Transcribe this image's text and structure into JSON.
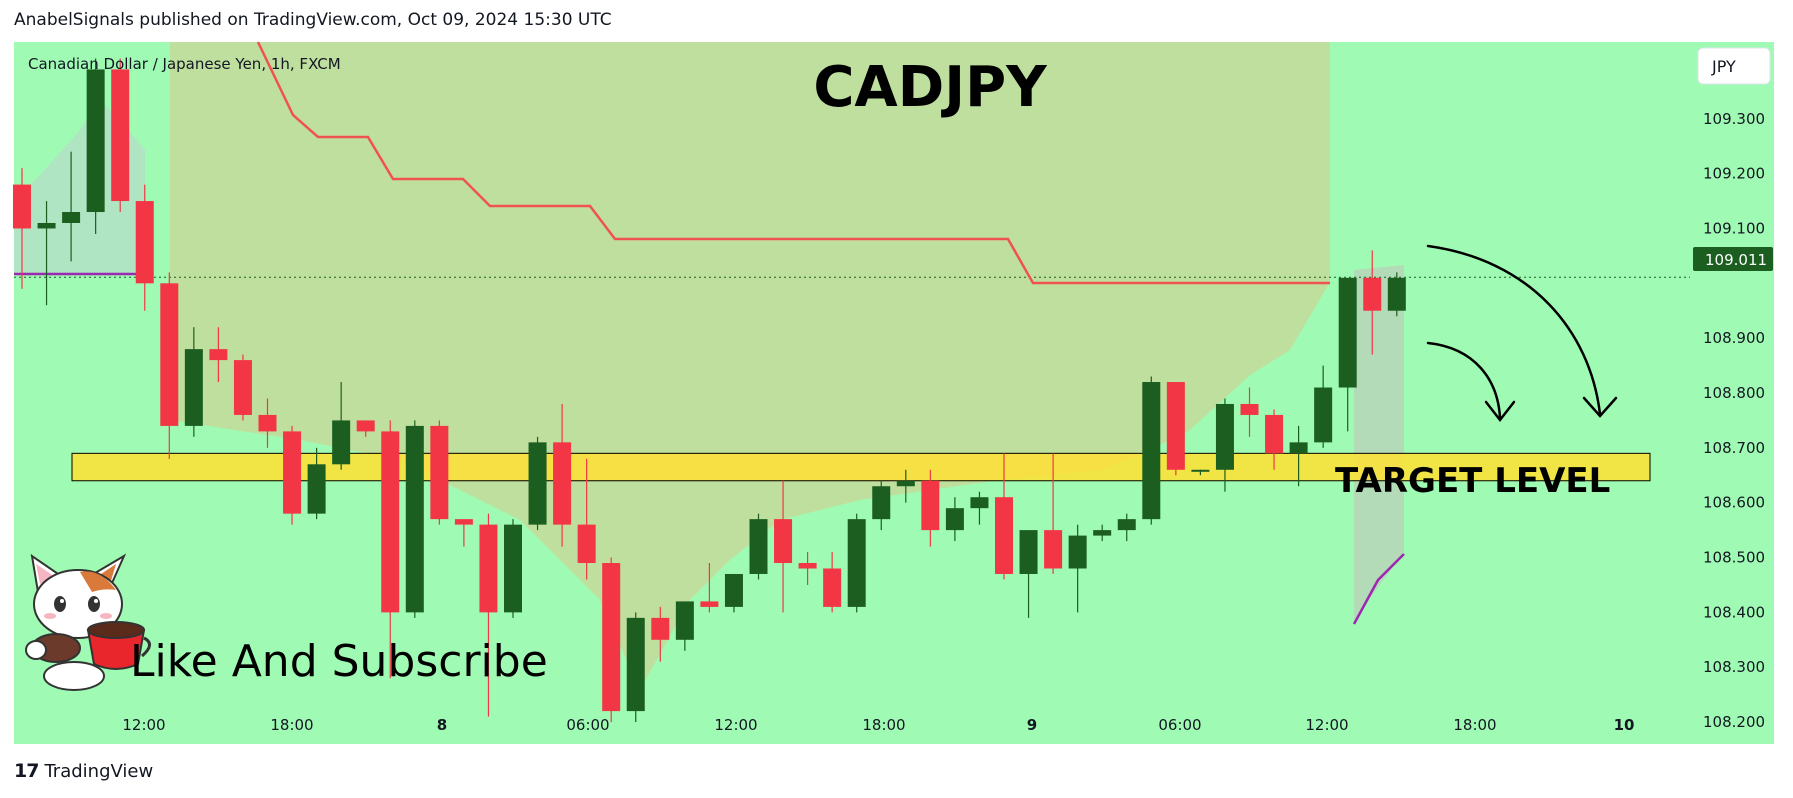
{
  "header": {
    "published_line": "AnabelSignals published on TradingView.com, Oct 09, 2024 15:30 UTC"
  },
  "footer": {
    "brand": "TradingView",
    "brand_mark": "17"
  },
  "colors": {
    "background": "#9ffbb3",
    "bull": "#1b5e20",
    "bear": "#f23645",
    "target_zone": "#ffe033",
    "stop_line": "#ef5350",
    "purple_line": "#9c27b0",
    "cloud_fill": "#c4d99a",
    "price_tag": "#1b5e20"
  },
  "icons": [
    "tradingview-logo-icon",
    "cat-mascot-icon",
    "curved-arrow-icon"
  ],
  "chart_data": {
    "type": "candlestick",
    "symbol_title": "Canadian Dollar / Japanese Yen, 1h, FXCM",
    "title": "CADJPY",
    "currency": "JPY",
    "last_price": "109.011",
    "ylim": [
      108.16,
      109.44
    ],
    "y_ticks": [
      "109.300",
      "109.200",
      "109.100",
      "108.900",
      "108.800",
      "108.700",
      "108.600",
      "108.500",
      "108.400",
      "108.300",
      "108.200"
    ],
    "x_ticks": [
      {
        "label": "12:00",
        "bold": false
      },
      {
        "label": "18:00",
        "bold": false
      },
      {
        "label": "8",
        "bold": true
      },
      {
        "label": "06:00",
        "bold": false
      },
      {
        "label": "12:00",
        "bold": false
      },
      {
        "label": "18:00",
        "bold": false
      },
      {
        "label": "9",
        "bold": true
      },
      {
        "label": "06:00",
        "bold": false
      },
      {
        "label": "12:00",
        "bold": false
      },
      {
        "label": "18:00",
        "bold": false
      },
      {
        "label": "10",
        "bold": true
      }
    ],
    "candles": [
      [
        109.18,
        109.21,
        108.99,
        109.1
      ],
      [
        109.1,
        109.15,
        108.96,
        109.11
      ],
      [
        109.11,
        109.24,
        109.04,
        109.13
      ],
      [
        109.13,
        109.41,
        109.09,
        109.39
      ],
      [
        109.39,
        109.41,
        109.13,
        109.15
      ],
      [
        109.15,
        109.18,
        108.95,
        109.0
      ],
      [
        109.0,
        109.02,
        108.68,
        108.74
      ],
      [
        108.74,
        108.92,
        108.72,
        108.88
      ],
      [
        108.88,
        108.92,
        108.82,
        108.86
      ],
      [
        108.86,
        108.87,
        108.75,
        108.76
      ],
      [
        108.76,
        108.79,
        108.7,
        108.73
      ],
      [
        108.73,
        108.74,
        108.56,
        108.58
      ],
      [
        108.58,
        108.7,
        108.57,
        108.67
      ],
      [
        108.67,
        108.82,
        108.66,
        108.75
      ],
      [
        108.75,
        108.75,
        108.72,
        108.73
      ],
      [
        108.73,
        108.75,
        108.28,
        108.4
      ],
      [
        108.4,
        108.75,
        108.39,
        108.74
      ],
      [
        108.74,
        108.75,
        108.56,
        108.57
      ],
      [
        108.57,
        108.57,
        108.52,
        108.56
      ],
      [
        108.56,
        108.58,
        108.21,
        108.4
      ],
      [
        108.4,
        108.57,
        108.39,
        108.56
      ],
      [
        108.56,
        108.72,
        108.55,
        108.71
      ],
      [
        108.71,
        108.78,
        108.52,
        108.56
      ],
      [
        108.56,
        108.68,
        108.46,
        108.49
      ],
      [
        108.49,
        108.5,
        108.2,
        108.22
      ],
      [
        108.22,
        108.4,
        108.2,
        108.39
      ],
      [
        108.39,
        108.41,
        108.31,
        108.35
      ],
      [
        108.35,
        108.42,
        108.33,
        108.42
      ],
      [
        108.42,
        108.49,
        108.4,
        108.41
      ],
      [
        108.41,
        108.46,
        108.4,
        108.47
      ],
      [
        108.47,
        108.58,
        108.46,
        108.57
      ],
      [
        108.57,
        108.64,
        108.4,
        108.49
      ],
      [
        108.49,
        108.51,
        108.45,
        108.48
      ],
      [
        108.48,
        108.51,
        108.4,
        108.41
      ],
      [
        108.41,
        108.58,
        108.4,
        108.57
      ],
      [
        108.57,
        108.64,
        108.55,
        108.63
      ],
      [
        108.63,
        108.66,
        108.6,
        108.64
      ],
      [
        108.64,
        108.66,
        108.52,
        108.55
      ],
      [
        108.55,
        108.61,
        108.53,
        108.59
      ],
      [
        108.59,
        108.62,
        108.56,
        108.61
      ],
      [
        108.61,
        108.69,
        108.46,
        108.47
      ],
      [
        108.47,
        108.55,
        108.39,
        108.55
      ],
      [
        108.55,
        108.69,
        108.47,
        108.48
      ],
      [
        108.48,
        108.56,
        108.4,
        108.54
      ],
      [
        108.54,
        108.56,
        108.53,
        108.55
      ],
      [
        108.55,
        108.58,
        108.53,
        108.57
      ],
      [
        108.57,
        108.83,
        108.56,
        108.82
      ],
      [
        108.82,
        108.82,
        108.65,
        108.66
      ],
      [
        108.66,
        108.66,
        108.65,
        108.66
      ],
      [
        108.66,
        108.79,
        108.62,
        108.78
      ],
      [
        108.78,
        108.81,
        108.72,
        108.76
      ],
      [
        108.76,
        108.77,
        108.66,
        108.69
      ],
      [
        108.69,
        108.74,
        108.63,
        108.71
      ],
      [
        108.71,
        108.85,
        108.7,
        108.81
      ],
      [
        108.81,
        109.01,
        108.73,
        109.01
      ],
      [
        109.01,
        109.06,
        108.87,
        108.95
      ],
      [
        108.95,
        109.02,
        108.94,
        109.01
      ]
    ],
    "annotations": {
      "target_zone": [
        108.64,
        108.69
      ],
      "target_label": "TARGET LEVEL",
      "subscribe_label": "Like And Subscribe"
    }
  }
}
